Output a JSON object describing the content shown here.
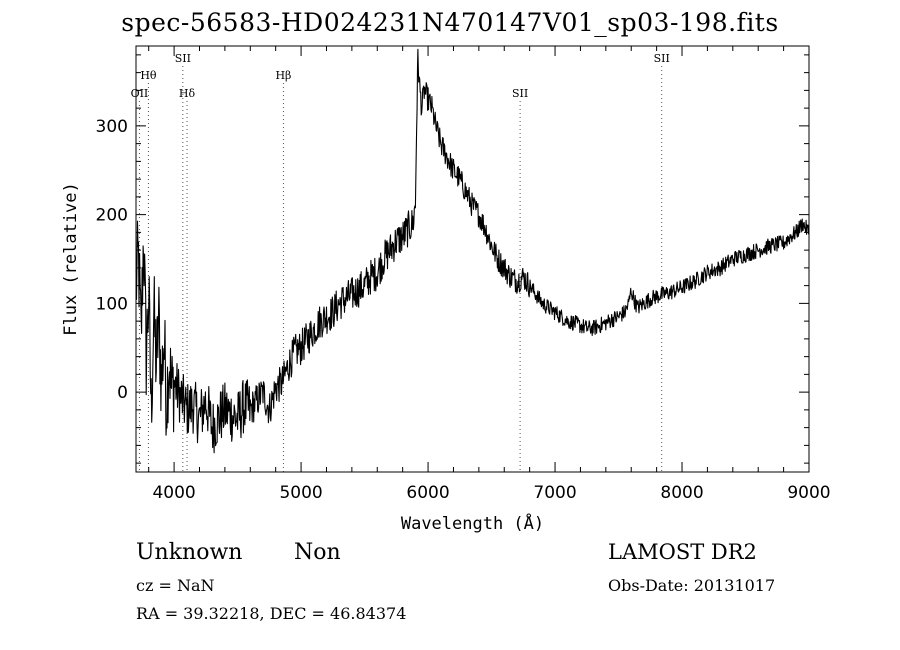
{
  "title": "spec-56583-HD024231N470147V01_sp03-198.fits",
  "info": {
    "class": "Unknown",
    "subclass": "Non",
    "survey": "LAMOST DR2",
    "cz": "cz = NaN",
    "obs_date": "Obs-Date: 20131017",
    "radec": "RA =  39.32218, DEC =  46.84374"
  },
  "chart_data": {
    "type": "line",
    "title": "spec-56583-HD024231N470147V01_sp03-198.fits",
    "xlabel": "Wavelength (Å)",
    "ylabel": "Flux (relative)",
    "xlim": [
      3700,
      9000
    ],
    "ylim": [
      -90,
      390
    ],
    "xticks": [
      4000,
      5000,
      6000,
      7000,
      8000,
      9000
    ],
    "yticks": [
      0,
      100,
      200,
      300
    ],
    "grid": false,
    "line_color": "#000000",
    "line_annotations": [
      {
        "label": "OII",
        "x": 3727,
        "row": 3
      },
      {
        "label": "Hθ",
        "x": 3798,
        "row": 2
      },
      {
        "label": "SII",
        "x": 4069,
        "row": 1
      },
      {
        "label": "Hδ",
        "x": 4102,
        "row": 3
      },
      {
        "label": "Hβ",
        "x": 4861,
        "row": 2
      },
      {
        "label": "SII",
        "x": 6725,
        "row": 3
      },
      {
        "label": "SII",
        "x": 7840,
        "row": 1
      }
    ],
    "series": [
      {
        "x": [
          3700,
          3720,
          3740,
          3760,
          3780,
          3800,
          3820,
          3840,
          3860,
          3880,
          3900,
          3920,
          3940,
          3960,
          3980,
          4000,
          4050,
          4100,
          4150,
          4200,
          4250,
          4300,
          4350,
          4400,
          4450,
          4500,
          4550,
          4600,
          4650,
          4700,
          4750,
          4800,
          4850,
          4900,
          4950,
          5000,
          5050,
          5100,
          5150,
          5200,
          5250,
          5300,
          5350,
          5400,
          5450,
          5500,
          5550,
          5600,
          5650,
          5700,
          5750,
          5800,
          5850,
          5880,
          5900,
          5910,
          5920,
          5930,
          5950,
          5970,
          6000,
          6030,
          6060,
          6100,
          6150,
          6200,
          6250,
          6300,
          6350,
          6400,
          6450,
          6500,
          6550,
          6600,
          6650,
          6700,
          6750,
          6800,
          6850,
          6900,
          6950,
          7000,
          7050,
          7100,
          7150,
          7200,
          7250,
          7300,
          7350,
          7400,
          7450,
          7500,
          7550,
          7580,
          7600,
          7620,
          7650,
          7700,
          7750,
          7800,
          7850,
          7900,
          7950,
          8000,
          8100,
          8200,
          8300,
          8400,
          8500,
          8600,
          8700,
          8800,
          8850,
          8900,
          8950,
          9000
        ],
        "y": [
          120,
          150,
          60,
          180,
          40,
          110,
          -20,
          90,
          30,
          80,
          10,
          60,
          -10,
          40,
          0,
          10,
          -5,
          -20,
          -15,
          -30,
          -10,
          -40,
          -30,
          -20,
          -25,
          -30,
          -15,
          -20,
          -10,
          0,
          -20,
          5,
          10,
          30,
          45,
          50,
          60,
          70,
          80,
          85,
          90,
          100,
          105,
          110,
          115,
          120,
          130,
          135,
          150,
          160,
          170,
          175,
          185,
          190,
          210,
          300,
          380,
          350,
          320,
          340,
          330,
          320,
          300,
          280,
          265,
          250,
          240,
          225,
          210,
          200,
          185,
          165,
          150,
          140,
          130,
          125,
          130,
          120,
          110,
          100,
          95,
          90,
          85,
          80,
          78,
          75,
          72,
          72,
          75,
          78,
          82,
          85,
          90,
          100,
          115,
          105,
          95,
          100,
          105,
          108,
          110,
          112,
          115,
          118,
          125,
          135,
          140,
          150,
          155,
          160,
          165,
          168,
          175,
          180,
          190,
          180
        ]
      }
    ]
  }
}
